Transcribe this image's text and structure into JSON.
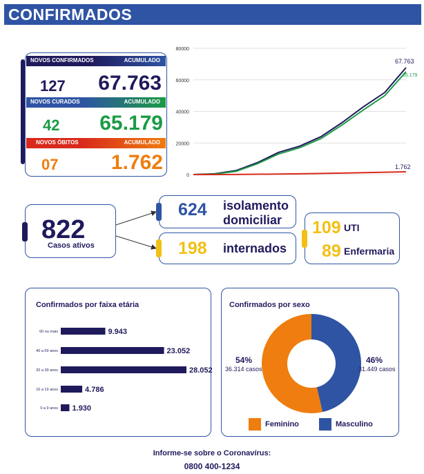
{
  "header": {
    "title": "CONFIRMADOS"
  },
  "stats": {
    "confirmed": {
      "label": "NOVOS CONFIRMADOS",
      "acc_label": "ACUMULADO",
      "new": "127",
      "total": "67.763"
    },
    "cured": {
      "label": "NOVOS CURADOS",
      "acc_label": "ACUMULADO",
      "new": "42",
      "total": "65.179"
    },
    "deaths": {
      "label": "NOVOS ÓBITOS",
      "acc_label": "ACUMULADO",
      "new": "07",
      "total": "1.762"
    }
  },
  "colors": {
    "navy": "#1f1a5c",
    "blue": "#2e54a3",
    "green": "#1b9b45",
    "orange": "#ef7d0f",
    "red": "#d9291c",
    "yellow": "#f2c014"
  },
  "active": {
    "value": "822",
    "label": "Casos ativos",
    "isolation": {
      "value": "624",
      "label_line1": "isolamento",
      "label_line2": "domiciliar"
    },
    "hospitalized": {
      "value": "198",
      "label": "internados"
    },
    "icu": {
      "value": "109",
      "label": "UTI"
    },
    "ward": {
      "value": "89",
      "label": "Enfermaria"
    }
  },
  "footer": {
    "line1": "Informe-se sobre o Coronavírus:",
    "line2": "0800 400-1234"
  },
  "chart_data": [
    {
      "type": "line",
      "title": "",
      "ylim": [
        0,
        80000
      ],
      "yticks": [
        "0",
        "20000",
        "40000",
        "60000",
        "80000"
      ],
      "x": [
        0,
        10,
        20,
        30,
        40,
        50,
        60,
        70,
        80,
        90,
        100
      ],
      "series": [
        {
          "name": "Confirmados",
          "values": [
            0,
            500,
            2500,
            7500,
            14000,
            18000,
            24000,
            33000,
            43000,
            52000,
            67763
          ],
          "end_label": "67.763"
        },
        {
          "name": "Curados",
          "values": [
            0,
            300,
            2000,
            6800,
            13000,
            17000,
            22800,
            31500,
            41000,
            50000,
            65179
          ],
          "end_label": "65.179"
        },
        {
          "name": "Óbitos",
          "values": [
            0,
            20,
            80,
            200,
            350,
            500,
            700,
            950,
            1200,
            1450,
            1762
          ],
          "end_label": "1.762"
        }
      ]
    },
    {
      "type": "bar",
      "title": "Confirmados por faixa etária",
      "categories": [
        "60 ou mais",
        "40 a 59 anos",
        "20 a 39 anos",
        "10 a 19 anos",
        "0 a 9 anos"
      ],
      "values": [
        9943,
        23052,
        28052,
        4786,
        1930
      ],
      "labels": [
        "9.943",
        "23.052",
        "28.052",
        "4.786",
        "1.930"
      ]
    },
    {
      "type": "pie",
      "title": "Confirmados por sexo",
      "categories": [
        "Feminino",
        "Masculino"
      ],
      "values": [
        36314,
        31449
      ],
      "percent_labels": [
        "54%",
        "46%"
      ],
      "count_labels": [
        "36.314 casos",
        "31.449 casos"
      ]
    }
  ]
}
